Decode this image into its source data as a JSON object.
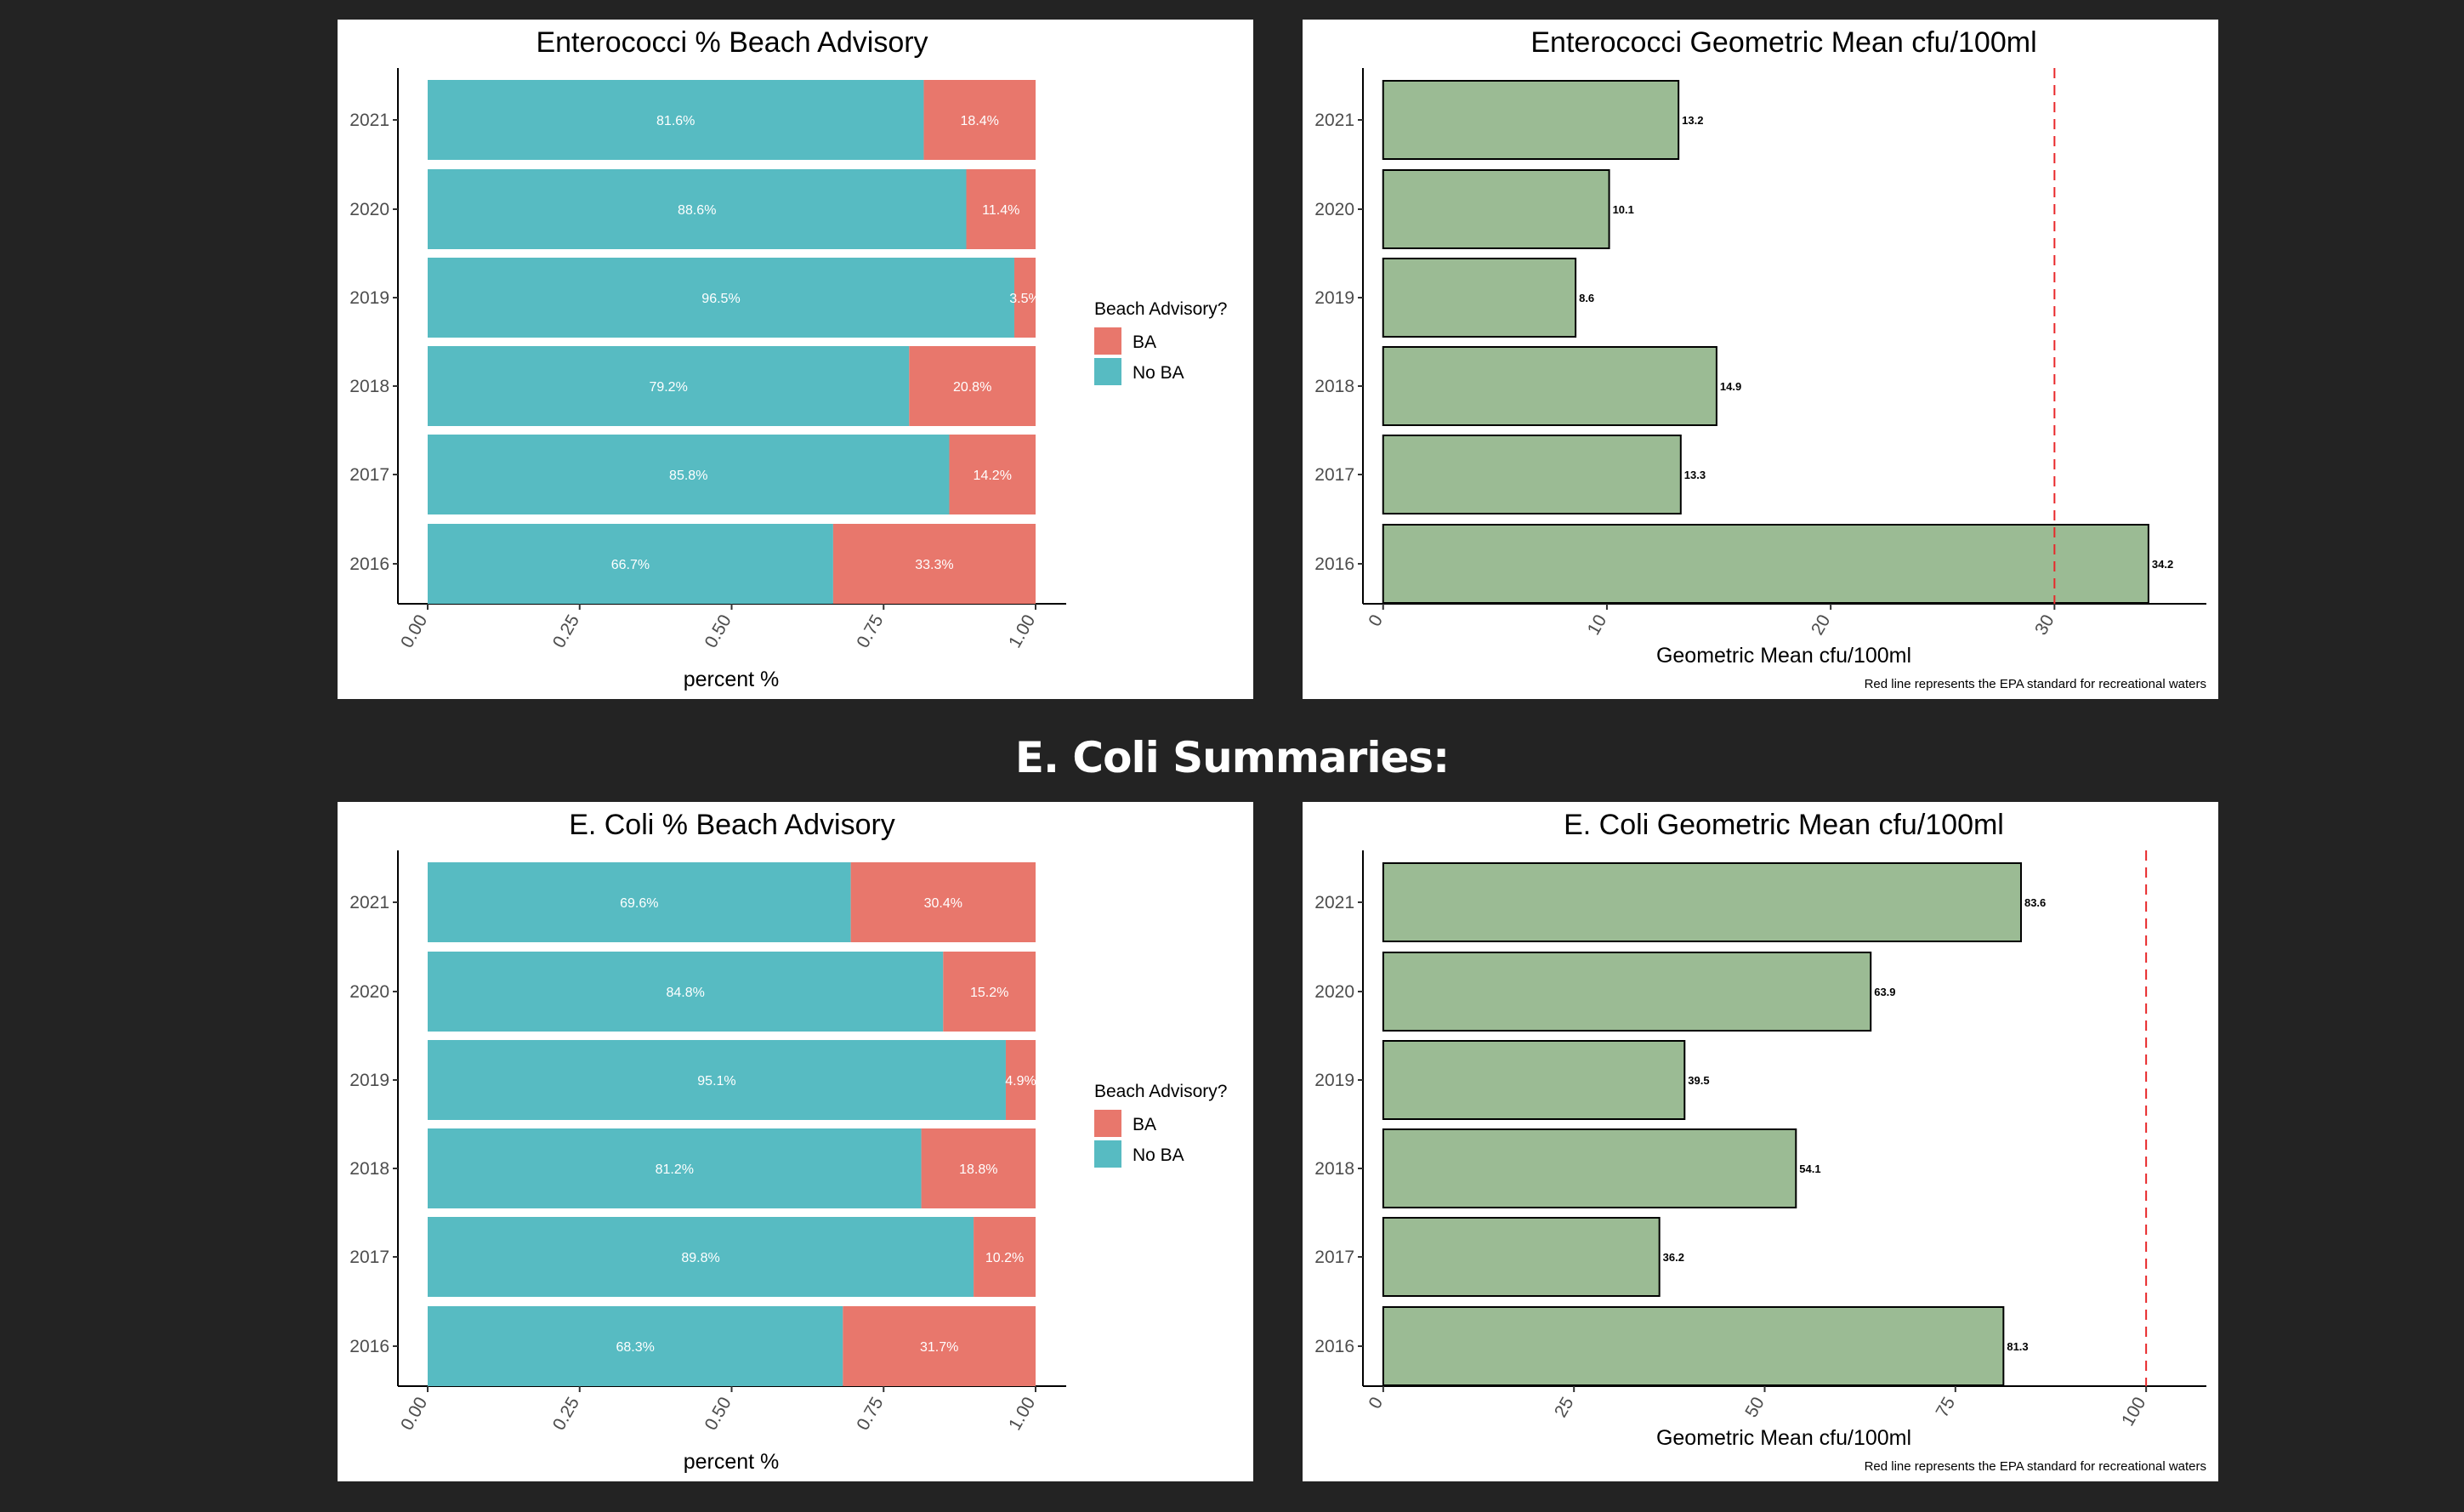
{
  "section_heading": "E. Coli Summaries:",
  "colors": {
    "ba": "#E8776C",
    "no_ba": "#57BBC2",
    "mean_bar": "#9BBB94",
    "epa_line": "#E8282A",
    "page_bg": "#232323"
  },
  "chart_data": [
    {
      "type": "bar",
      "orientation": "horizontal",
      "stacked": "percent",
      "title": "Enterococci % Beach Advisory",
      "xlabel": "percent %",
      "ylabel": "",
      "categories": [
        "2021",
        "2020",
        "2019",
        "2018",
        "2017",
        "2016"
      ],
      "series": [
        {
          "name": "No BA",
          "values": [
            81.6,
            88.6,
            96.5,
            79.2,
            85.8,
            66.7
          ],
          "labels": [
            "81.6%",
            "88.6%",
            "96.5%",
            "79.2%",
            "85.8%",
            "66.7%"
          ]
        },
        {
          "name": "BA",
          "values": [
            18.4,
            11.4,
            3.5,
            20.8,
            14.2,
            33.3
          ],
          "labels": [
            "18.4%",
            "11.4%",
            "3.5%",
            "20.8%",
            "14.2%",
            "33.3%"
          ]
        }
      ],
      "xticks": [
        "0.00",
        "0.25",
        "0.50",
        "0.75",
        "1.00"
      ],
      "xlim": [
        0,
        1
      ],
      "legend": {
        "title": "Beach Advisory?",
        "items": [
          "BA",
          "No BA"
        ],
        "position": "right"
      },
      "grid": false
    },
    {
      "type": "bar",
      "orientation": "horizontal",
      "title": "Enterococci Geometric Mean cfu/100ml",
      "xlabel": "Geometric Mean cfu/100ml",
      "ylabel": "",
      "categories": [
        "2021",
        "2020",
        "2019",
        "2018",
        "2017",
        "2016"
      ],
      "values": [
        13.2,
        10.1,
        8.6,
        14.9,
        13.3,
        34.2
      ],
      "value_labels": [
        "13.2",
        "10.1",
        "8.6",
        "14.9",
        "13.3",
        "34.2"
      ],
      "xticks": [
        "0",
        "10",
        "20",
        "30"
      ],
      "xlim": [
        -1.7,
        35.8
      ],
      "reference_line": {
        "value": 30,
        "style": "dashed"
      },
      "caption": "Red line represents the EPA standard for recreational waters",
      "grid": false
    },
    {
      "type": "bar",
      "orientation": "horizontal",
      "stacked": "percent",
      "title": "E. Coli % Beach Advisory",
      "xlabel": "percent %",
      "ylabel": "",
      "categories": [
        "2021",
        "2020",
        "2019",
        "2018",
        "2017",
        "2016"
      ],
      "series": [
        {
          "name": "No BA",
          "values": [
            69.6,
            84.8,
            95.1,
            81.2,
            89.8,
            68.3
          ],
          "labels": [
            "69.6%",
            "84.8%",
            "95.1%",
            "81.2%",
            "89.8%",
            "68.3%"
          ]
        },
        {
          "name": "BA",
          "values": [
            30.4,
            15.2,
            4.9,
            18.8,
            10.2,
            31.7
          ],
          "labels": [
            "30.4%",
            "15.2%",
            "4.9%",
            "18.8%",
            "10.2%",
            "31.7%"
          ]
        }
      ],
      "xticks": [
        "0.00",
        "0.25",
        "0.50",
        "0.75",
        "1.00"
      ],
      "xlim": [
        0,
        1
      ],
      "legend": {
        "title": "Beach Advisory?",
        "items": [
          "BA",
          "No BA"
        ],
        "position": "right"
      },
      "grid": false
    },
    {
      "type": "bar",
      "orientation": "horizontal",
      "title": "E. Coli Geometric Mean cfu/100ml",
      "xlabel": "Geometric Mean cfu/100ml",
      "ylabel": "",
      "categories": [
        "2021",
        "2020",
        "2019",
        "2018",
        "2017",
        "2016"
      ],
      "values": [
        83.6,
        63.9,
        39.5,
        54.1,
        36.2,
        81.3
      ],
      "value_labels": [
        "83.6",
        "63.9",
        "39.5",
        "54.1",
        "36.2",
        "81.3"
      ],
      "xticks": [
        "0",
        "25",
        "50",
        "75",
        "100"
      ],
      "xlim": [
        -5,
        105
      ],
      "reference_line": {
        "value": 100,
        "style": "dashed"
      },
      "caption": "Red line represents the EPA standard for recreational waters",
      "grid": false
    }
  ]
}
